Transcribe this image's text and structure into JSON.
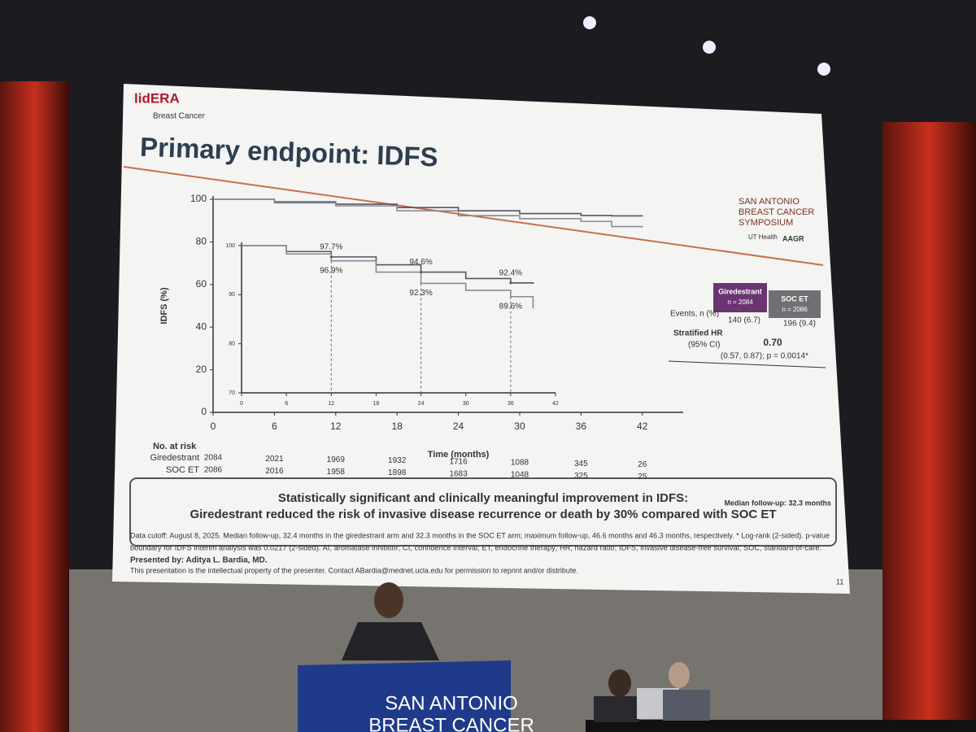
{
  "slide": {
    "logo": "lidERA",
    "logo_sub": "Breast Cancer",
    "title": "Primary endpoint: IDFS",
    "sponsor": [
      "SAN ANTONIO",
      "BREAST CANCER",
      "SYMPOSIUM"
    ],
    "partners": [
      "UT Health",
      "AAGR"
    ],
    "risk_table": {
      "heading": "No. at risk",
      "rows": [
        {
          "name": "Giredestrant",
          "values": [
            2084,
            2021,
            1969,
            1932,
            1716,
            1088,
            345,
            26
          ]
        },
        {
          "name": "SOC ET",
          "values": [
            2086,
            2016,
            1958,
            1898,
            1683,
            1048,
            325,
            25
          ]
        }
      ]
    },
    "hr_table": {
      "headers": [
        [
          "Giredestrant",
          "n = 2084"
        ],
        [
          "SOC ET",
          "n = 2086"
        ]
      ],
      "events_label": "Events, n (%)",
      "events": [
        "140 (6.7)",
        "196 (9.4)"
      ],
      "hr_label": [
        "Stratified HR",
        "(95% CI)"
      ],
      "hr": "0.70",
      "ci": "(0.57, 0.87); p = 0.0014*"
    },
    "median": "Median follow-up: 32.3 months",
    "conclusion": [
      "Statistically significant and clinically meaningful improvement in IDFS:",
      "Giredestrant reduced the risk of invasive disease recurrence or death by 30% compared with SOC ET"
    ],
    "footnote": [
      "Data cutoff: August 8, 2025. Median follow-up, 32.4 months in the giredestrant arm and 32.3 months in the SOC ET arm; maximum follow-up, 46.6 months and 46.3 months, respectively. * Log-rank (2-sided). p-value",
      "boundary for IDFS interim analysis was 0.0217 (2-sided). AI, aromatase inhibitor; CI, confidence interval; ET, endocrine therapy; HR, hazard ratio; IDFS, invasive disease-free survival; SOC, standard-of-care."
    ],
    "presenter": "Presented by: Aditya L. Bardia, MD.",
    "copyright": "This presentation is the intellectual property of the presenter. Contact ABardia@mednet.ucla.edu for permission to reprint and/or distribute.",
    "page": "11"
  },
  "podium": [
    "SAN ANTONIO",
    "BREAST CANCER"
  ],
  "chart_data": [
    {
      "type": "line",
      "ylabel": "IDFS (%)",
      "xlabel": "Time (months)",
      "x": [
        0,
        6,
        12,
        18,
        24,
        30,
        36,
        39,
        42
      ],
      "series": [
        {
          "color": "#555566",
          "values": [
            100,
            98.8,
            97.7,
            96.1,
            94.6,
            93.3,
            92.4,
            92.2,
            92
          ]
        },
        {
          "color": "#8a8a96",
          "values": [
            100,
            98.3,
            96.9,
            94.6,
            92.3,
            90.9,
            89.6,
            87.2,
            86.8
          ]
        }
      ],
      "xlim": [
        0,
        46
      ],
      "ylim": [
        0,
        100
      ],
      "xticks": [
        0,
        6,
        12,
        18,
        24,
        30,
        36,
        42
      ],
      "yticks": [
        0,
        20,
        40,
        60,
        80,
        100
      ]
    },
    {
      "type": "line",
      "x": [
        0,
        6,
        12,
        18,
        24,
        30,
        36,
        39
      ],
      "series": [
        {
          "color": "#555566",
          "values": [
            100,
            98.8,
            97.7,
            96.1,
            94.6,
            93.3,
            92.4,
            92.2
          ]
        },
        {
          "color": "#8a8a96",
          "values": [
            100,
            98.3,
            96.9,
            94.6,
            92.3,
            90.9,
            89.6,
            87.2
          ]
        }
      ],
      "xlim": [
        0,
        42
      ],
      "ylim": [
        70,
        100
      ],
      "xticks": [
        0,
        6,
        12,
        18,
        24,
        30,
        36,
        42
      ],
      "yticks": [
        70,
        80,
        90,
        100
      ],
      "annotations": [
        {
          "x": 12,
          "value": 97.7,
          "label": "97.7%"
        },
        {
          "x": 12,
          "value": 96.9,
          "label": "96.9%"
        },
        {
          "x": 24,
          "value": 94.6,
          "label": "94.6%"
        },
        {
          "x": 24,
          "value": 92.3,
          "label": "92.3%"
        },
        {
          "x": 36,
          "value": 92.4,
          "label": "92.4%"
        },
        {
          "x": 36,
          "value": 89.6,
          "label": "89.6%"
        }
      ]
    }
  ]
}
